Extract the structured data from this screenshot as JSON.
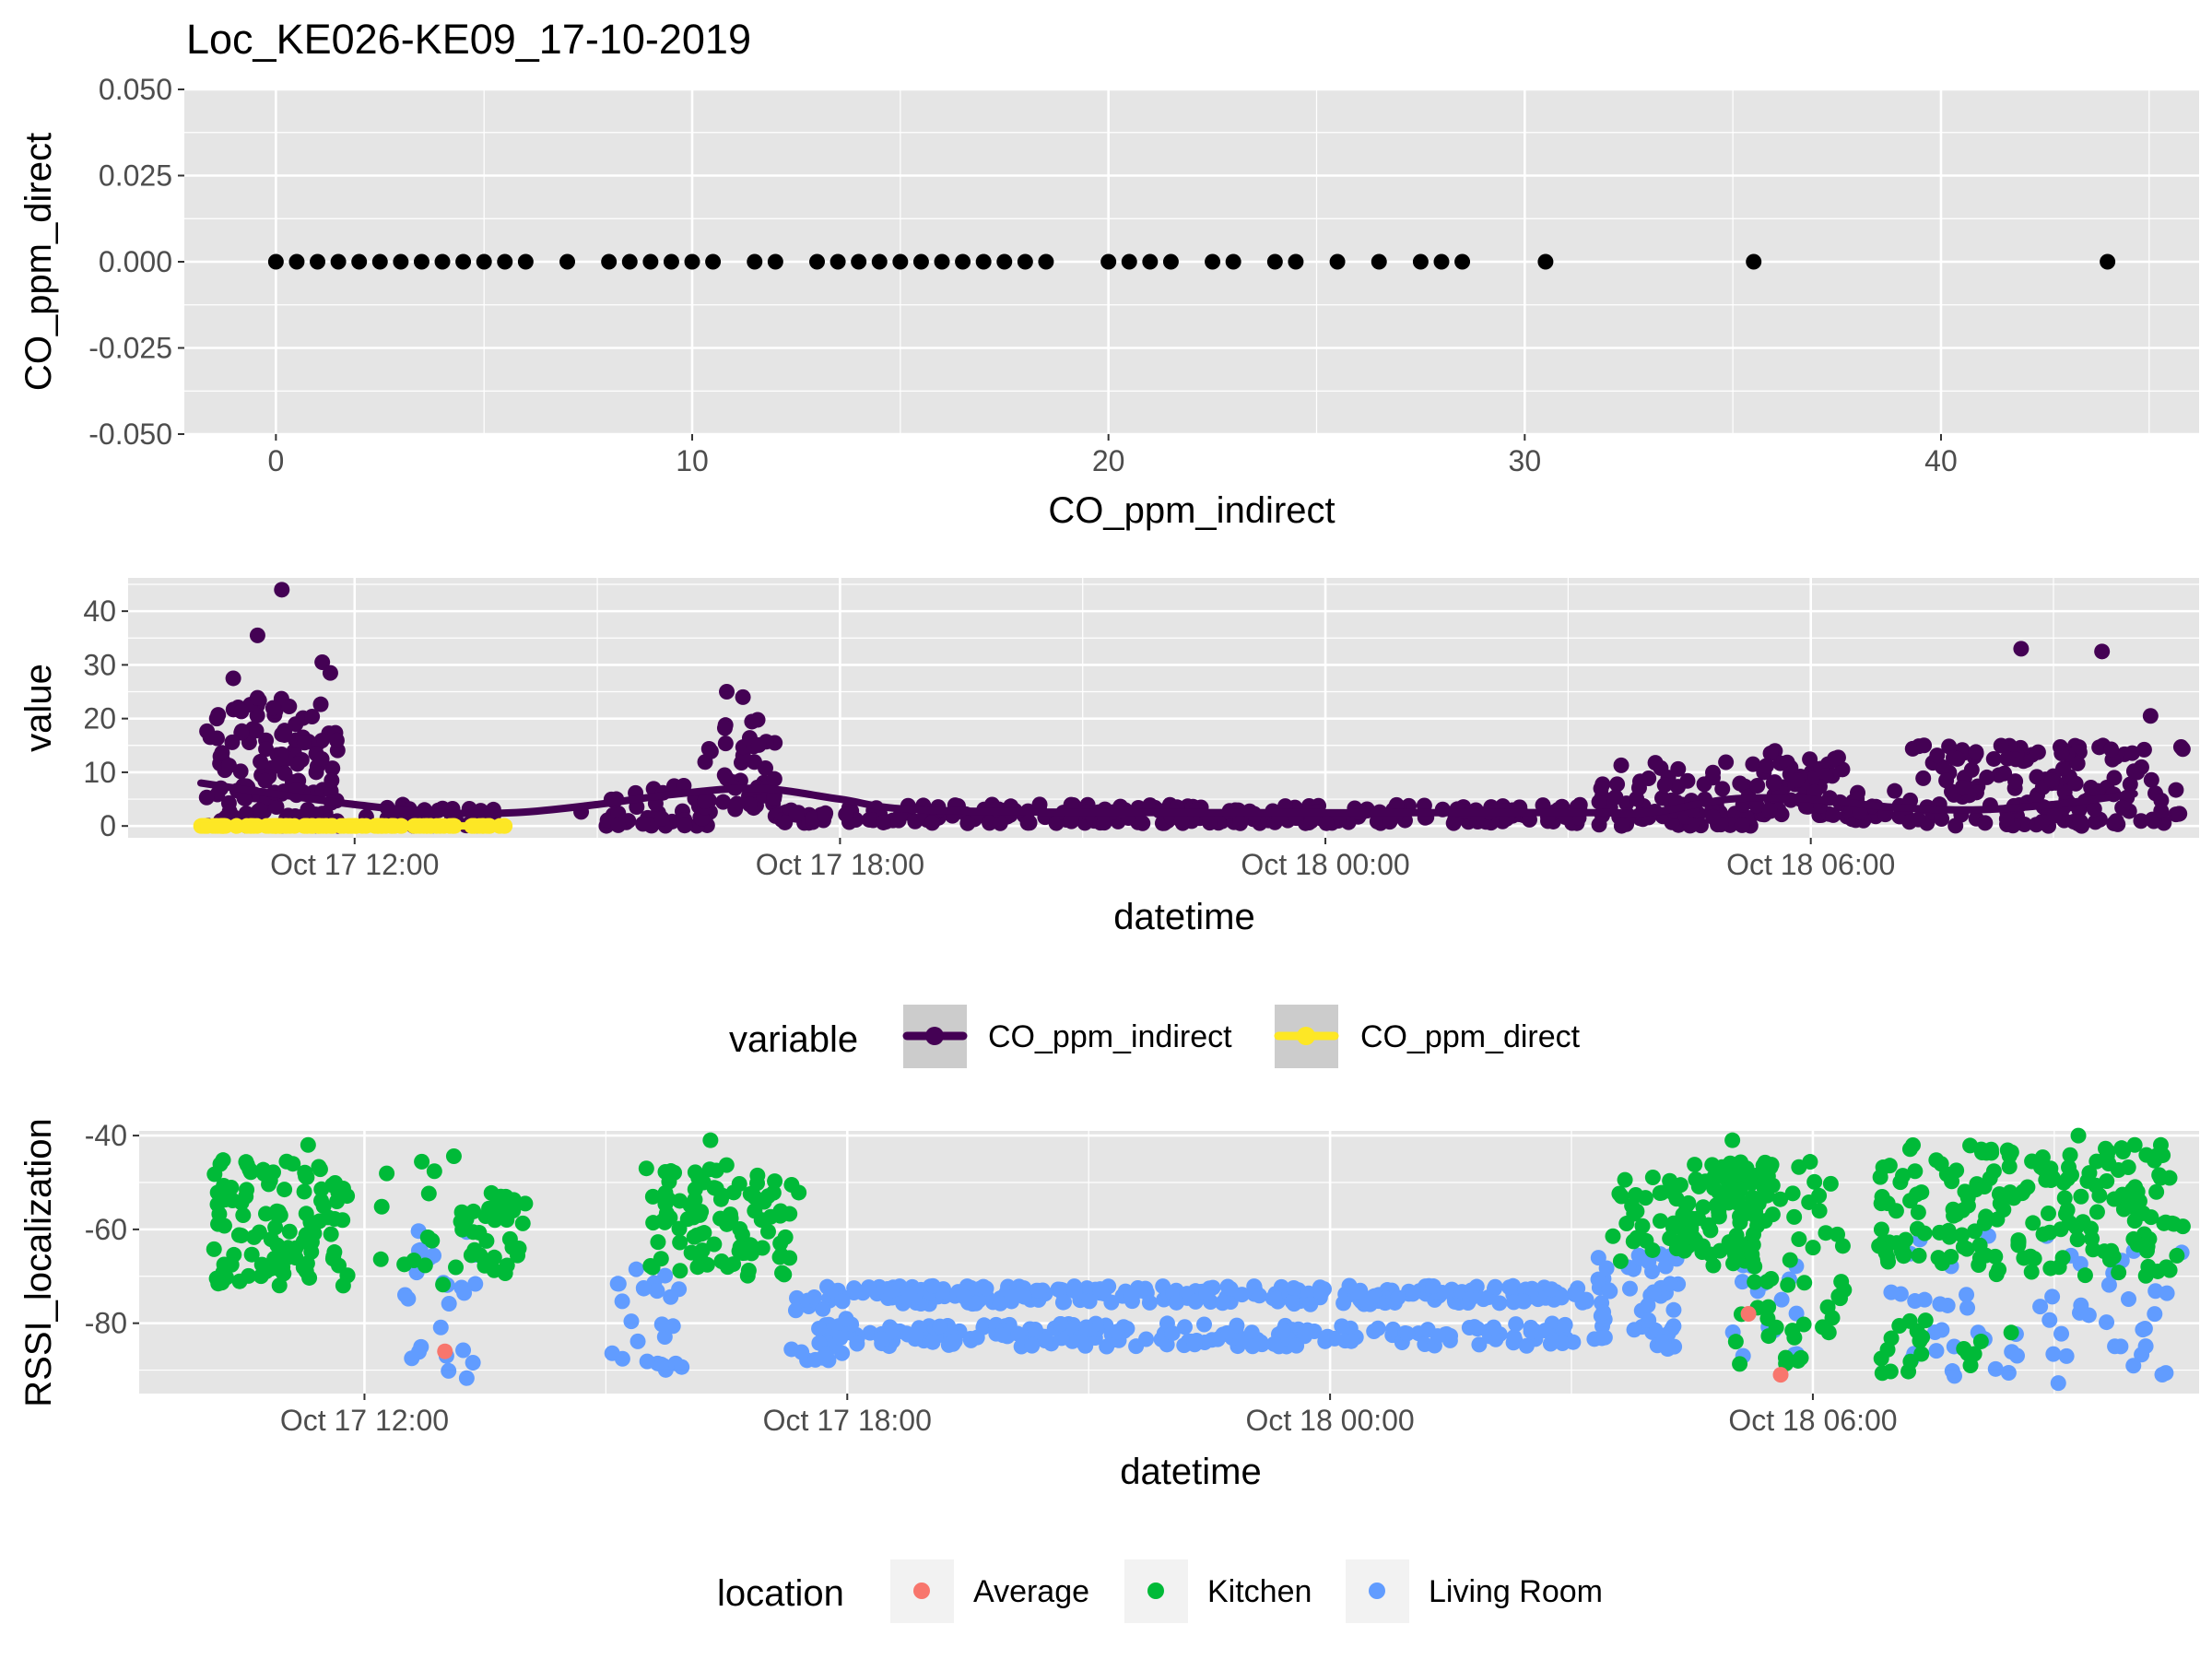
{
  "title": "Loc_KE026-KE09_17-10-2019",
  "colors": {
    "panel_bg": "#E5E5E5",
    "grid": "#FFFFFF",
    "tick_text": "#4D4D4D",
    "indirect": "#440154",
    "direct": "#FDE725",
    "average": "#F8766D",
    "kitchen": "#00BA38",
    "living_room": "#619CFF",
    "black": "#000000"
  },
  "chart_data": [
    {
      "type": "scatter",
      "xlabel": "CO_ppm_indirect",
      "ylabel": "CO_ppm_direct",
      "xlim": [
        -2.2,
        46.2
      ],
      "ylim": [
        -0.05,
        0.05
      ],
      "x_ticks": [
        0,
        10,
        20,
        30,
        40
      ],
      "y_ticks": [
        -0.05,
        -0.025,
        0,
        0.025,
        0.05
      ],
      "y_tick_labels": [
        "-0.050",
        "-0.025",
        "0.000",
        "0.025",
        "0.050"
      ],
      "grid": true,
      "x": [
        0,
        0.5,
        1,
        1.5,
        2,
        2.5,
        3,
        3.5,
        4,
        4.5,
        5,
        5.5,
        6,
        7,
        8,
        8.5,
        9,
        9.5,
        10,
        10.5,
        11.5,
        12,
        13,
        13.5,
        14,
        14.5,
        15,
        15.5,
        16,
        16.5,
        17,
        17.5,
        18,
        18.5,
        20,
        20.5,
        21,
        21.5,
        22.5,
        23,
        24,
        24.5,
        25.5,
        26.5,
        27.5,
        28,
        28.5,
        30.5,
        35.5,
        44
      ],
      "y": 0
    },
    {
      "type": "line",
      "xlabel": "datetime",
      "ylabel": "value",
      "x_unit": "hours after Oct 17 00:00",
      "xlim": [
        9.2,
        34.8
      ],
      "ylim": [
        -2.2,
        46.2
      ],
      "x_ticks": [
        12,
        18,
        24,
        30
      ],
      "x_tick_labels": [
        "Oct 17 12:00",
        "Oct 17 18:00",
        "Oct 18 00:00",
        "Oct 18 06:00"
      ],
      "y_ticks": [
        0,
        10,
        20,
        30,
        40
      ],
      "legend": {
        "position": "bottom",
        "title": "variable",
        "entries": [
          "CO_ppm_indirect",
          "CO_ppm_direct"
        ]
      },
      "series": [
        {
          "name": "CO_ppm_indirect",
          "smooth": [
            [
              10.1,
              8
            ],
            [
              11,
              6
            ],
            [
              12,
              4
            ],
            [
              13,
              2.5
            ],
            [
              14,
              2.5
            ],
            [
              15,
              4
            ],
            [
              16,
              6
            ],
            [
              17,
              7
            ],
            [
              18,
              5
            ],
            [
              19,
              3
            ],
            [
              22,
              2.5
            ],
            [
              27,
              2.5
            ],
            [
              28,
              2.5
            ],
            [
              29,
              5
            ],
            [
              30,
              5
            ],
            [
              31,
              3.5
            ],
            [
              32,
              3
            ],
            [
              33,
              4
            ],
            [
              34,
              6
            ]
          ],
          "cloud": [
            {
              "x0": 10.15,
              "x1": 11.8,
              "ymin": 0,
              "ymax": 25,
              "n": 140
            },
            {
              "x0": 12.1,
              "x1": 13.8,
              "ymin": 0,
              "ymax": 4,
              "n": 45
            },
            {
              "x0": 14.8,
              "x1": 16.4,
              "ymin": 0,
              "ymax": 8,
              "n": 40
            },
            {
              "x0": 16.3,
              "x1": 17.2,
              "ymin": 3,
              "ymax": 20,
              "n": 40
            },
            {
              "x0": 17.2,
              "x1": 27.3,
              "ymin": 0.5,
              "ymax": 4,
              "n": 250
            },
            {
              "x0": 27.3,
              "x1": 29.3,
              "ymin": 0,
              "ymax": 12,
              "n": 80
            },
            {
              "x0": 29.3,
              "x1": 30.4,
              "ymin": 2,
              "ymax": 14,
              "n": 60
            },
            {
              "x0": 30.4,
              "x1": 31.2,
              "ymin": 1,
              "ymax": 7,
              "n": 25
            },
            {
              "x0": 31.2,
              "x1": 34.6,
              "ymin": 0,
              "ymax": 15,
              "n": 150
            }
          ],
          "points": [
            [
              11.1,
              44
            ],
            [
              10.8,
              35.5
            ],
            [
              11.6,
              30.5
            ],
            [
              10.5,
              27.5
            ],
            [
              11.7,
              28.5
            ],
            [
              16.6,
              25
            ],
            [
              16.8,
              24
            ],
            [
              32.6,
              33
            ],
            [
              33.6,
              32.5
            ],
            [
              34.2,
              20.5
            ],
            [
              33.1,
              13.5
            ],
            [
              31.4,
              15
            ]
          ]
        },
        {
          "name": "CO_ppm_direct",
          "x_range": [
            10.1,
            13.9
          ],
          "value": 0
        }
      ]
    },
    {
      "type": "scatter",
      "xlabel": "datetime",
      "ylabel": "RSSI_localization",
      "x_unit": "hours after Oct 17 00:00",
      "xlim": [
        9.2,
        34.8
      ],
      "ylim": [
        -95,
        -39
      ],
      "x_ticks": [
        12,
        18,
        24,
        30
      ],
      "x_tick_labels": [
        "Oct 17 12:00",
        "Oct 17 18:00",
        "Oct 18 00:00",
        "Oct 18 06:00"
      ],
      "y_ticks": [
        -80,
        -60,
        -40
      ],
      "legend": {
        "position": "bottom",
        "title": "location",
        "entries": [
          "Average",
          "Kitchen",
          "Living Room"
        ]
      },
      "series": [
        {
          "name": "Average",
          "points": [
            [
              13,
              -86
            ],
            [
              29.2,
              -78
            ],
            [
              29.6,
              -91
            ]
          ]
        },
        {
          "name": "Kitchen",
          "clouds": [
            {
              "x0": 10.1,
              "x1": 11.8,
              "ymin": -72,
              "ymax": -45,
              "n": 110
            },
            {
              "x0": 12.2,
              "x1": 13.2,
              "ymin": -72,
              "ymax": -43,
              "n": 15
            },
            {
              "x0": 13.2,
              "x1": 14.0,
              "ymin": -70,
              "ymax": -52,
              "n": 35
            },
            {
              "x0": 15.5,
              "x1": 17.4,
              "ymin": -70,
              "ymax": -46,
              "n": 95
            },
            {
              "x0": 27.5,
              "x1": 28.3,
              "ymin": -68,
              "ymax": -47,
              "n": 25
            },
            {
              "x0": 28.3,
              "x1": 29.5,
              "ymin": -68,
              "ymax": -45,
              "n": 80
            },
            {
              "x0": 29.0,
              "x1": 30.4,
              "ymin": -90,
              "ymax": -45,
              "n": 60
            },
            {
              "x0": 30.8,
              "x1": 34.6,
              "ymin": -70,
              "ymax": -42,
              "n": 190
            },
            {
              "x0": 30.6,
              "x1": 32.5,
              "ymin": -92,
              "ymax": -78,
              "n": 20
            }
          ],
          "points": [
            [
              11.3,
              -42
            ],
            [
              16.3,
              -41
            ],
            [
              29.0,
              -41
            ],
            [
              33.3,
              -40
            ],
            [
              34.0,
              -42
            ]
          ]
        },
        {
          "name": "Living Room",
          "clouds": [
            {
              "x0": 17.7,
              "x1": 27.4,
              "ymin": -76,
              "ymax": -72,
              "n": 260
            },
            {
              "x0": 17.7,
              "x1": 27.4,
              "ymin": -85,
              "ymax": -80,
              "n": 200
            },
            {
              "x0": 17.3,
              "x1": 18.0,
              "ymin": -88,
              "ymax": -74,
              "n": 25
            },
            {
              "x0": 12.5,
              "x1": 13.4,
              "ymin": -92,
              "ymax": -60,
              "n": 25
            },
            {
              "x0": 15.0,
              "x1": 16.0,
              "ymin": -90,
              "ymax": -65,
              "n": 25
            },
            {
              "x0": 27.3,
              "x1": 28.4,
              "ymin": -86,
              "ymax": -64,
              "n": 45
            },
            {
              "x0": 29.0,
              "x1": 29.9,
              "ymin": -88,
              "ymax": -66,
              "n": 15
            },
            {
              "x0": 30.9,
              "x1": 34.6,
              "ymin": -93,
              "ymax": -60,
              "n": 60
            }
          ]
        }
      ]
    }
  ]
}
